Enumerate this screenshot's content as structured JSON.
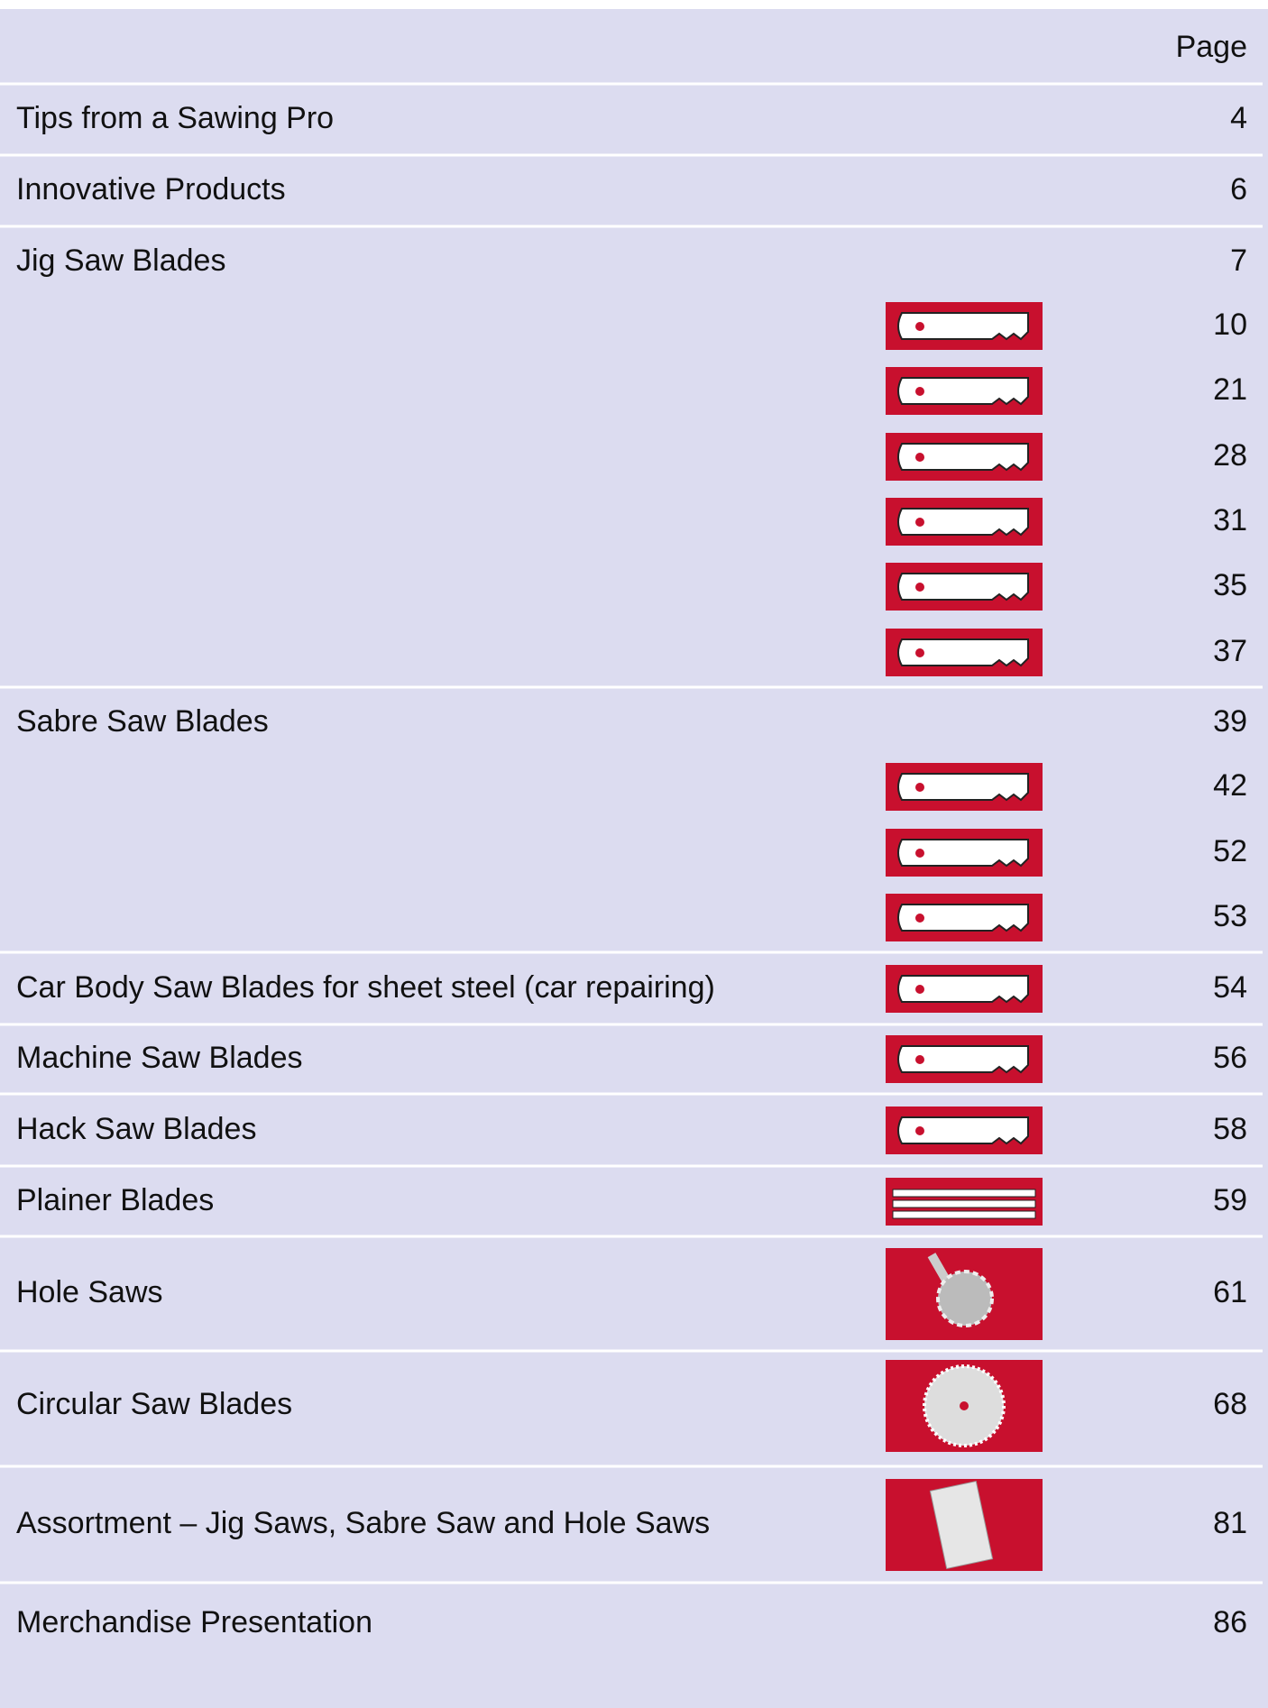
{
  "header": {
    "page_label": "Page"
  },
  "entries": [
    {
      "title": "Tips from a Sawing Pro",
      "page": 4
    },
    {
      "title": "Innovative Products",
      "page": 6
    },
    {
      "title": "Jig Saw Blades",
      "page": 7,
      "subsections": [
        {
          "page": 10
        },
        {
          "page": 21
        },
        {
          "page": 28
        },
        {
          "page": 31
        },
        {
          "page": 35
        },
        {
          "page": 37
        }
      ]
    },
    {
      "title": "Sabre Saw Blades",
      "page": 39,
      "subsections": [
        {
          "page": 42
        },
        {
          "page": 52
        },
        {
          "page": 53
        }
      ]
    },
    {
      "title": "Car Body Saw Blades for sheet steel (car repairing)",
      "page": 54
    },
    {
      "title": "Machine Saw Blades",
      "page": 56
    },
    {
      "title": "Hack Saw Blades",
      "page": 58
    },
    {
      "title": "Plainer Blades",
      "page": 59
    },
    {
      "title": "Hole Saws",
      "page": 61
    },
    {
      "title": "Circular Saw Blades",
      "page": 68
    },
    {
      "title": "Assortment – Jig Saws, Sabre Saw and Hole Saws",
      "page": 81
    },
    {
      "title": "Merchandise Presentation",
      "page": 86
    }
  ]
}
